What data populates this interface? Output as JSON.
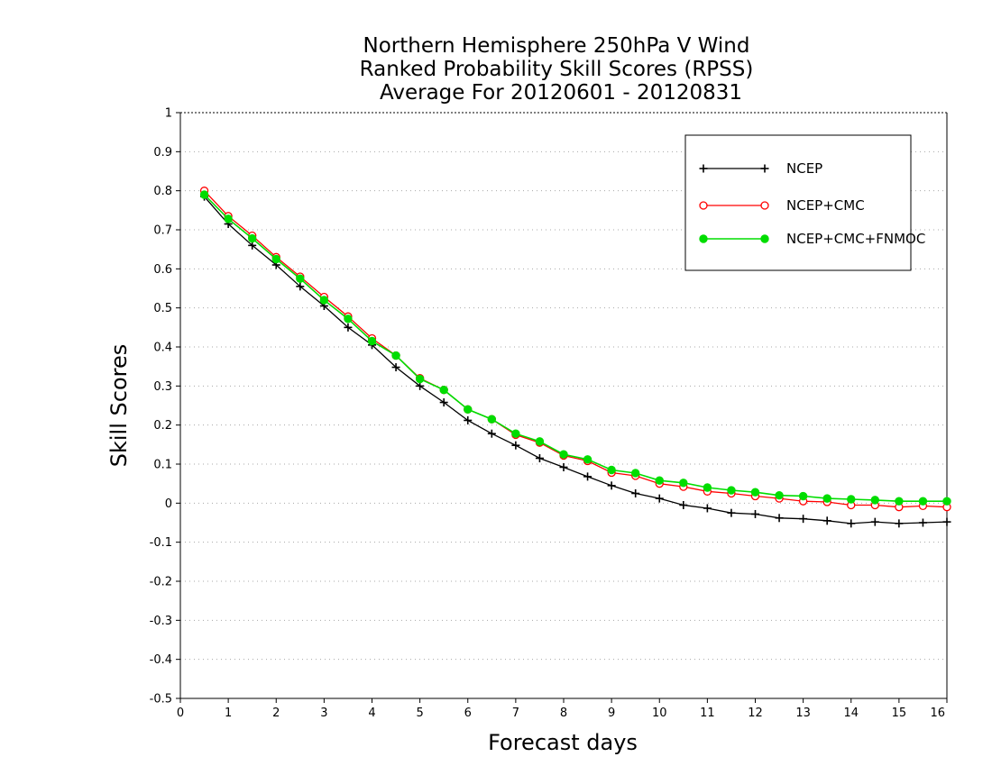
{
  "chart_data": {
    "type": "line",
    "title": [
      "Northern Hemisphere 250hPa V Wind",
      "Ranked Probability Skill Scores (RPSS)",
      "Average For 20120601 - 20120831"
    ],
    "xlabel": "Forecast days",
    "ylabel": "Skill Scores",
    "xlim": [
      0,
      16
    ],
    "ylim": [
      -0.5,
      1
    ],
    "xticks": [
      0,
      1,
      2,
      3,
      4,
      5,
      6,
      7,
      8,
      9,
      10,
      11,
      12,
      13,
      14,
      15,
      16
    ],
    "yticks": [
      -0.5,
      -0.4,
      -0.3,
      -0.2,
      -0.1,
      0,
      0.1,
      0.2,
      0.3,
      0.4,
      0.5,
      0.6,
      0.7,
      0.8,
      0.9,
      1
    ],
    "ytick_labels": [
      "-0.5",
      "-0.4",
      "-0.3",
      "-0.2",
      "-0.1",
      "0",
      "0.1",
      "0.2",
      "0.3",
      "0.4",
      "0.5",
      "0.6",
      "0.7",
      "0.8",
      "0.9",
      "1"
    ],
    "grid": true,
    "legend_position": "top-right",
    "x": [
      0.5,
      1,
      1.5,
      2,
      2.5,
      3,
      3.5,
      4,
      4.5,
      5,
      5.5,
      6,
      6.5,
      7,
      7.5,
      8,
      8.5,
      9,
      9.5,
      10,
      10.5,
      11,
      11.5,
      12,
      12.5,
      13,
      13.5,
      14,
      14.5,
      15,
      15.5,
      16
    ],
    "series": [
      {
        "name": "NCEP",
        "color": "#000000",
        "marker": "plus",
        "values": [
          0.785,
          0.715,
          0.66,
          0.61,
          0.555,
          0.505,
          0.45,
          0.405,
          0.348,
          0.3,
          0.258,
          0.212,
          0.178,
          0.148,
          0.115,
          0.092,
          0.068,
          0.045,
          0.025,
          0.012,
          -0.005,
          -0.013,
          -0.025,
          -0.028,
          -0.038,
          -0.04,
          -0.045,
          -0.052,
          -0.048,
          -0.052,
          -0.05,
          -0.048
        ]
      },
      {
        "name": "NCEP+CMC",
        "color": "#ff0000",
        "marker": "open-circle",
        "values": [
          0.8,
          0.735,
          0.685,
          0.63,
          0.58,
          0.528,
          0.478,
          0.422,
          0.378,
          0.32,
          0.29,
          0.24,
          0.215,
          0.175,
          0.155,
          0.122,
          0.108,
          0.078,
          0.07,
          0.05,
          0.042,
          0.03,
          0.025,
          0.018,
          0.012,
          0.005,
          0.003,
          -0.005,
          -0.005,
          -0.01,
          -0.007,
          -0.01
        ]
      },
      {
        "name": "NCEP+CMC+FNMOC",
        "color": "#00dd00",
        "marker": "filled-circle",
        "values": [
          0.79,
          0.728,
          0.678,
          0.625,
          0.575,
          0.52,
          0.472,
          0.415,
          0.378,
          0.318,
          0.29,
          0.24,
          0.215,
          0.178,
          0.158,
          0.125,
          0.112,
          0.085,
          0.077,
          0.058,
          0.052,
          0.04,
          0.033,
          0.028,
          0.02,
          0.018,
          0.012,
          0.01,
          0.008,
          0.005,
          0.005,
          0.005
        ]
      }
    ]
  }
}
